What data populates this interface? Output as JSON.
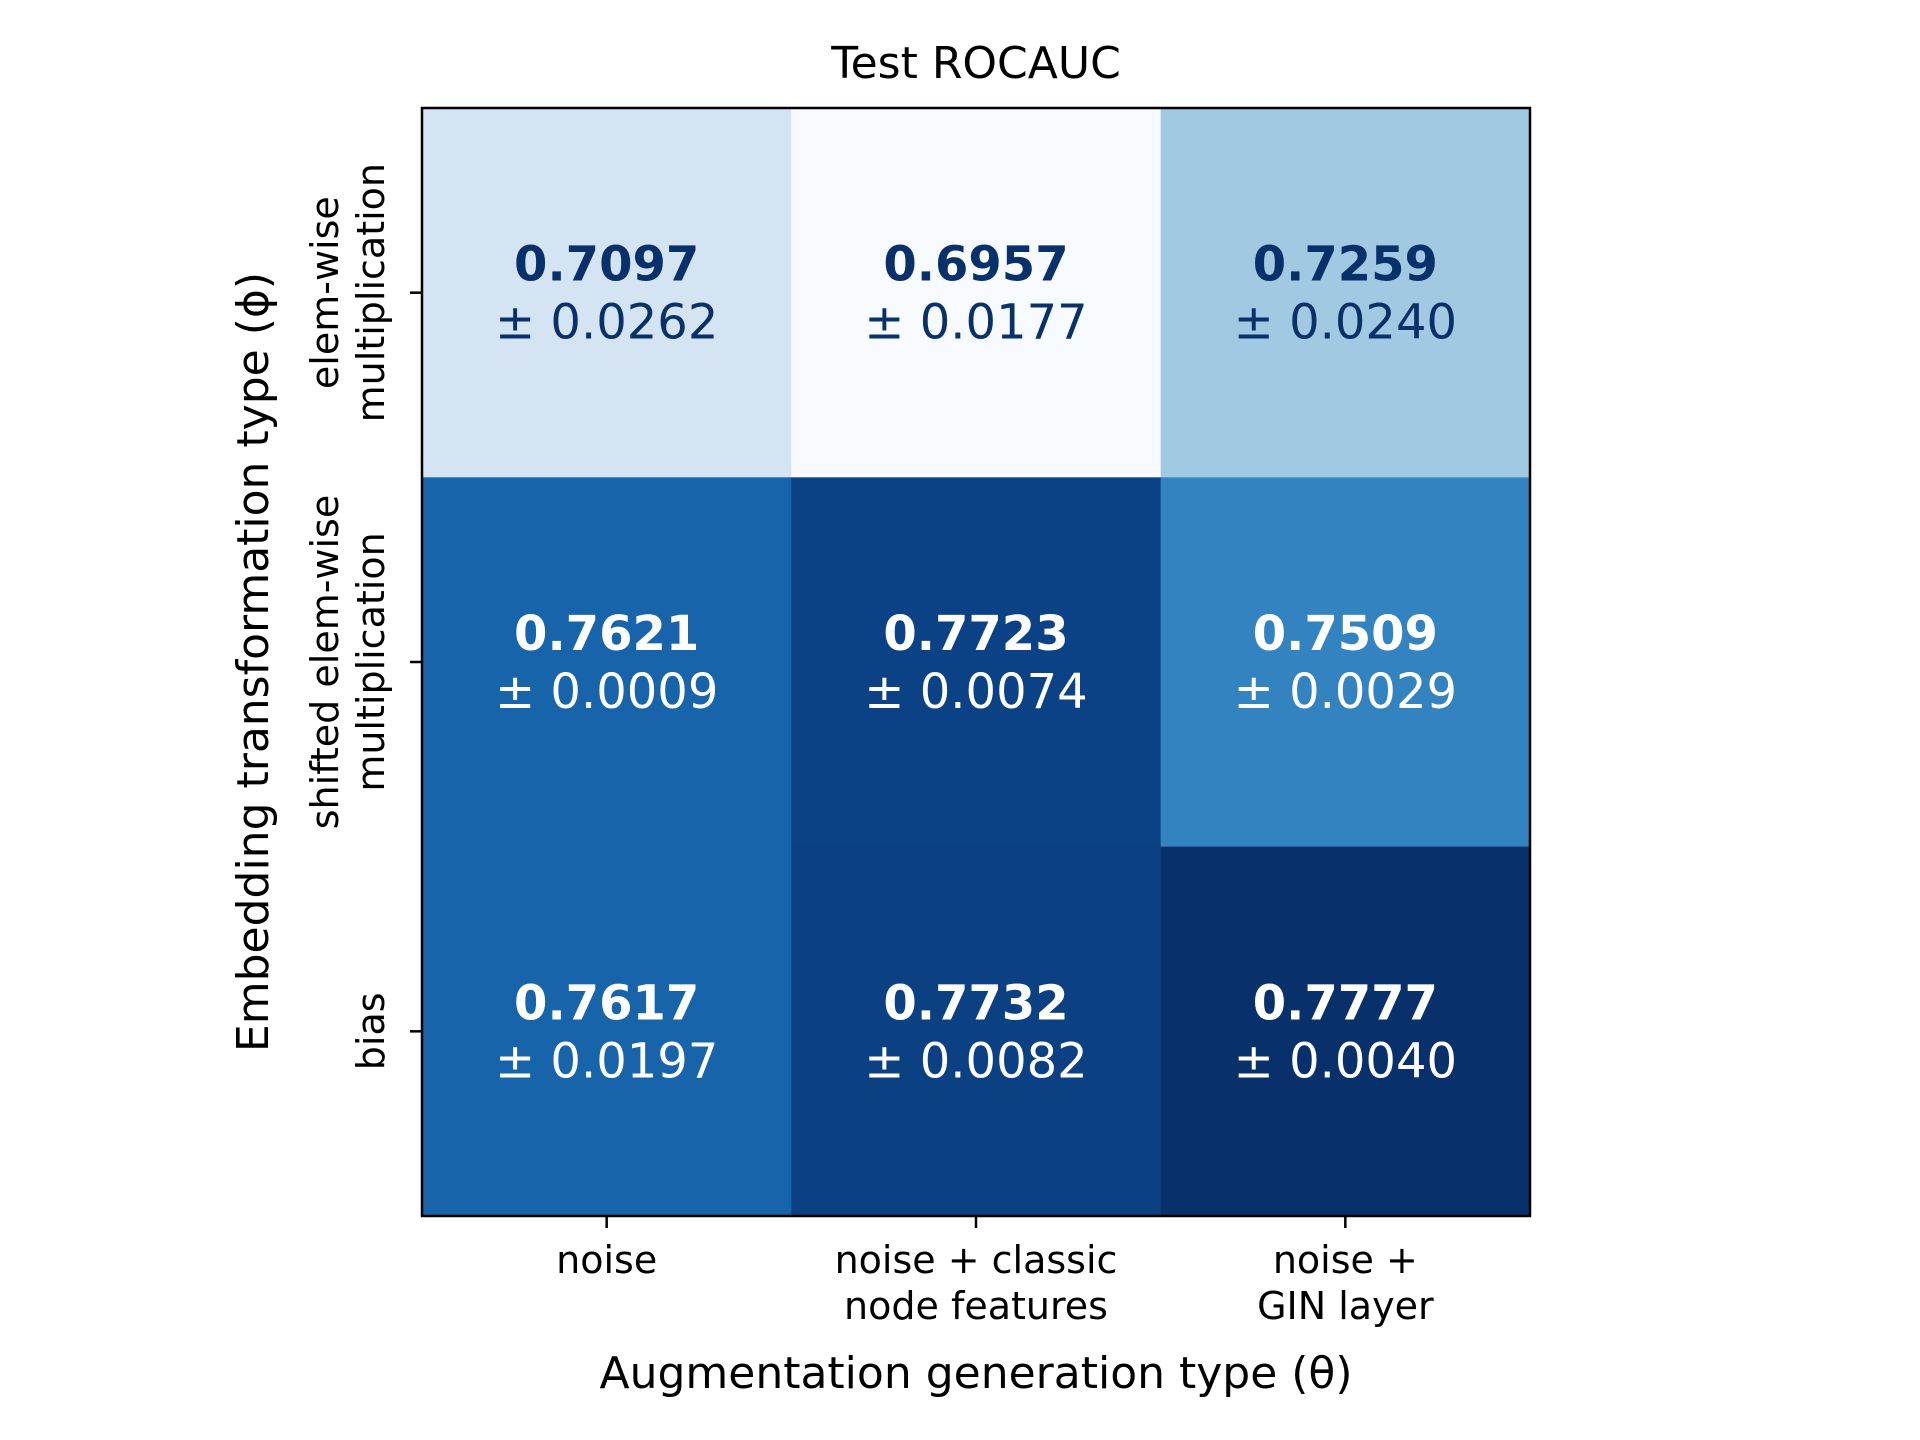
{
  "chart_data": {
    "type": "heatmap",
    "title": "Test ROCAUC",
    "xlabel": "Augmentation generation type (θ)",
    "ylabel": "Embedding transformation type (ϕ)",
    "x_categories": [
      [
        "noise"
      ],
      [
        "noise + classic",
        "node features"
      ],
      [
        "noise +",
        "GIN layer"
      ]
    ],
    "y_categories": [
      [
        "elem-wise",
        "multiplication"
      ],
      [
        "shifted elem-wise",
        "multiplication"
      ],
      [
        "bias"
      ]
    ],
    "y_categories_line2": [
      "multiplication",
      "multiplication",
      ""
    ],
    "colormap": "Blues",
    "values": [
      [
        0.7097,
        0.6957,
        0.7259
      ],
      [
        0.7621,
        0.7723,
        0.7509
      ],
      [
        0.7617,
        0.7732,
        0.7777
      ]
    ],
    "stds": [
      [
        0.0262,
        0.0177,
        0.024
      ],
      [
        0.0009,
        0.0074,
        0.0029
      ],
      [
        0.0197,
        0.0082,
        0.004
      ]
    ],
    "cell_labels_mean": [
      [
        "0.7097",
        "0.6957",
        "0.7259"
      ],
      [
        "0.7621",
        "0.7723",
        "0.7509"
      ],
      [
        "0.7617",
        "0.7732",
        "0.7777"
      ]
    ],
    "cell_labels_std": [
      [
        "± 0.0262",
        "± 0.0177",
        "± 0.0240"
      ],
      [
        "± 0.0009",
        "± 0.0074",
        "± 0.0029"
      ],
      [
        "± 0.0197",
        "± 0.0082",
        "± 0.0040"
      ]
    ],
    "cell_colors": [
      [
        "#d4e4f3",
        "#f7fbff",
        "#a1c9e1"
      ],
      [
        "#1764ab",
        "#0b4285",
        "#3383c0"
      ],
      [
        "#1864aa",
        "#0b4083",
        "#08306b"
      ]
    ],
    "text_colors": [
      [
        "#08306b",
        "#08306b",
        "#08306b"
      ],
      [
        "#ffffff",
        "#ffffff",
        "#ffffff"
      ],
      [
        "#ffffff",
        "#ffffff",
        "#ffffff"
      ]
    ]
  }
}
